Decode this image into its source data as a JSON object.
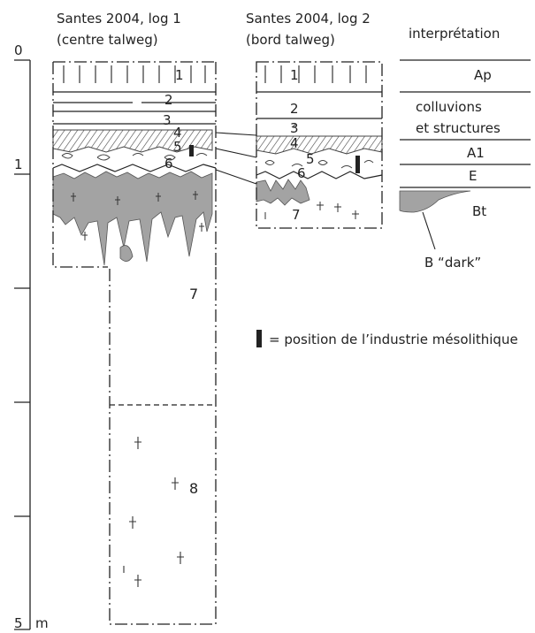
{
  "headers": {
    "log1_title": "Santes 2004, log 1",
    "log1_subtitle": "(centre talweg)",
    "log2_title": "Santes 2004, log 2",
    "log2_subtitle": "(bord talweg)",
    "interp_title": "interprétation"
  },
  "depth_scale": {
    "labels": [
      "0",
      "1",
      "5"
    ],
    "unit": "m"
  },
  "log1_layers": [
    "1",
    "2",
    "3",
    "4",
    "5",
    "6",
    "7",
    "8"
  ],
  "log2_layers": [
    "1",
    "2",
    "3",
    "4",
    "5",
    "6",
    "7"
  ],
  "interpretation": {
    "ap": "Ap",
    "colluvions_line1": "colluvions",
    "colluvions_line2": "et structures",
    "a1": "A1",
    "e": "E",
    "bt": "Bt",
    "b_dark": "B “dark”"
  },
  "legend": {
    "text": "= position  de l’industrie mésolithique"
  },
  "colors": {
    "dark_horizon": "#a3a3a3",
    "marker": "#222222"
  }
}
